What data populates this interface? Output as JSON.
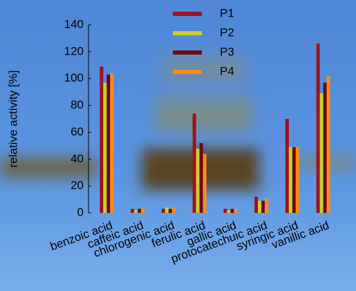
{
  "chart_data": {
    "type": "bar",
    "y_label": "relative activity [%]",
    "categories": [
      "benzoic acid",
      "caffeic acid",
      "chlorogenic acid",
      "ferulic acid",
      "gallic acid",
      "protocatechuic acid",
      "syringic acid",
      "vanillic acid"
    ],
    "series": [
      {
        "name": "P1",
        "color": "#a3101a",
        "values": [
          109,
          3,
          3,
          74,
          3,
          12,
          70,
          126
        ]
      },
      {
        "name": "P2",
        "color": "#c6d12a",
        "values": [
          97,
          2,
          4,
          48,
          2,
          9,
          49,
          89
        ]
      },
      {
        "name": "P3",
        "color": "#6b0a14",
        "values": [
          103,
          3,
          3,
          52,
          3,
          9,
          49,
          97
        ]
      },
      {
        "name": "P4",
        "color": "#ff8a1c",
        "values": [
          104,
          4,
          4,
          44,
          3,
          11,
          49,
          102
        ]
      }
    ],
    "ylim": [
      0,
      140
    ],
    "yticks": [
      0,
      20,
      40,
      60,
      80,
      100,
      120,
      140
    ],
    "legend": "top"
  }
}
